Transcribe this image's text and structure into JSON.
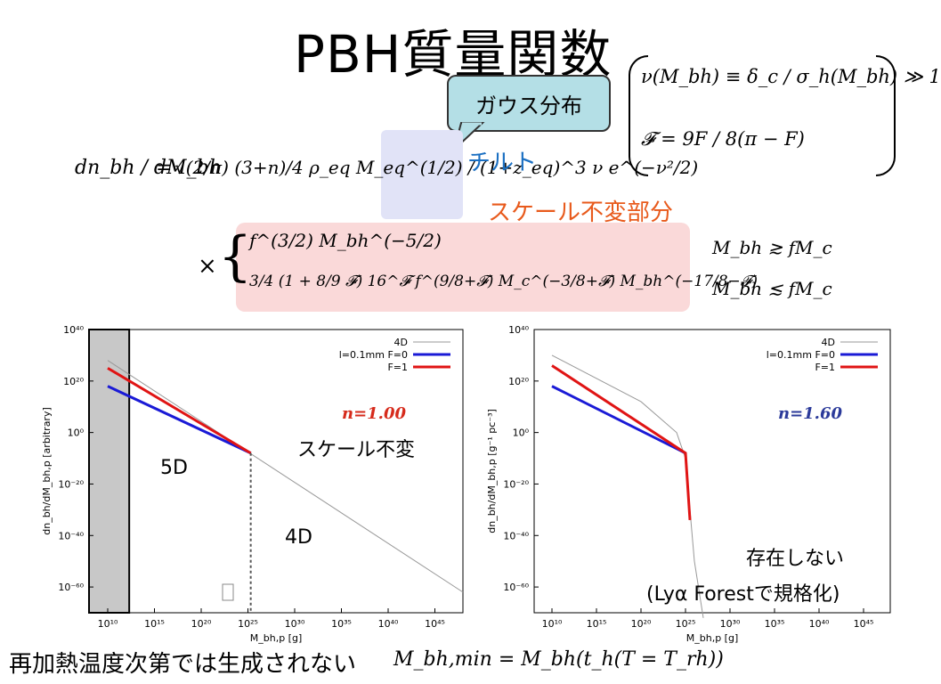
{
  "title": "PBH質量関数",
  "bubble": {
    "text": "ガウス分布"
  },
  "labels": {
    "tilt": "チルト",
    "scale_invariant_part": "スケール不変部分"
  },
  "equations": {
    "nu_def": "ν(M_bh) ≡ δ_c / σ_h(M_bh) ≫ 1",
    "F_def": "𝓕 = 9F / 8(π − F)",
    "main_lhs": "dn_bh / dM_bh",
    "main_rhs": "√(2/π) (3+n)/4 ρ_eq M_eq^(1/2) / (1+z_eq)^3 ν e^(−ν²/2)",
    "case1": "f^(3/2) M_bh^(−5/2)",
    "case2": "3/4 (1 + 8/9 𝓕) 16^𝓕 f^(9/8+𝓕) M_c^(−3/8+𝓕) M_bh^(−17/8−𝓕)",
    "cond1": "M_bh ≳ fM_c",
    "cond2": "M_bh ≲ fM_c",
    "bottom": "M_bh,min = M_bh(t_h(T = T_rh))"
  },
  "bottom_text": "再加熱温度次第では生成されない",
  "chart_data": [
    {
      "type": "line",
      "ylabel": "dn_bh/dM_bh,p [arbitrary]",
      "xlabel": "M_bh,p [g]",
      "x_ticks": [
        "10¹⁰",
        "10¹⁵",
        "10²⁰",
        "10²⁵",
        "10³⁰",
        "10³⁵",
        "10⁴⁰",
        "10⁴⁵"
      ],
      "y_ticks": [
        "10⁴⁰",
        "10²⁰",
        "10⁰",
        "10⁻²⁰",
        "10⁻⁴⁰",
        "10⁻⁶⁰"
      ],
      "xlim": [
        100000000.0,
        1e+48
      ],
      "ylim": [
        1e-70,
        1e+40
      ],
      "legend": [
        "4D",
        "l=0.1mm F=0",
        "F=1"
      ],
      "legend_position": "top-right",
      "annotation": "n=1.00",
      "caption": "スケール不変",
      "region_labels": [
        "5D",
        "4D"
      ],
      "colors": {
        "4D": "#999999",
        "F0": "#1a1ad6",
        "F1": "#e01414",
        "annot": "#d62b1c"
      },
      "series": [
        {
          "name": "4D",
          "x_log": [
            10,
            48
          ],
          "y_log": [
            28,
            -62
          ]
        },
        {
          "name": "l=0.1mm F=0",
          "x_log": [
            10,
            25.3
          ],
          "y_log": [
            18,
            -8
          ]
        },
        {
          "name": "F=1",
          "x_log": [
            10,
            25.3
          ],
          "y_log": [
            25,
            -8
          ]
        }
      ]
    },
    {
      "type": "line",
      "ylabel": "dn_bh/dM_bh,p [g⁻¹ pc⁻³]",
      "xlabel": "M_bh,p [g]",
      "x_ticks": [
        "10¹⁰",
        "10¹⁵",
        "10²⁰",
        "10²⁵",
        "10³⁰",
        "10³⁵",
        "10⁴⁰",
        "10⁴⁵"
      ],
      "y_ticks": [
        "10⁴⁰",
        "10²⁰",
        "10⁰",
        "10⁻²⁰",
        "10⁻⁴⁰",
        "10⁻⁶⁰"
      ],
      "xlim": [
        100000000.0,
        1e+48
      ],
      "ylim": [
        1e-70,
        1e+40
      ],
      "legend": [
        "4D",
        "l=0.1mm F=0",
        "F=1"
      ],
      "legend_position": "top-right",
      "annotation": "n=1.60",
      "caption": "存在しない",
      "caption2": "(Lyα Forestで規格化)",
      "colors": {
        "4D": "#999999",
        "F0": "#1a1ad6",
        "F1": "#e01414",
        "annot": "#2b3a9a"
      },
      "series": [
        {
          "name": "4D",
          "x_log": [
            10,
            20,
            24,
            25,
            26,
            27
          ],
          "y_log": [
            30,
            12,
            0,
            -10,
            -50,
            -80
          ]
        },
        {
          "name": "l=0.1mm F=0",
          "x_log": [
            10,
            25
          ],
          "y_log": [
            18,
            -8
          ]
        },
        {
          "name": "F=1",
          "x_log": [
            10,
            25,
            25.5
          ],
          "y_log": [
            26,
            -8,
            -34
          ]
        }
      ]
    }
  ]
}
